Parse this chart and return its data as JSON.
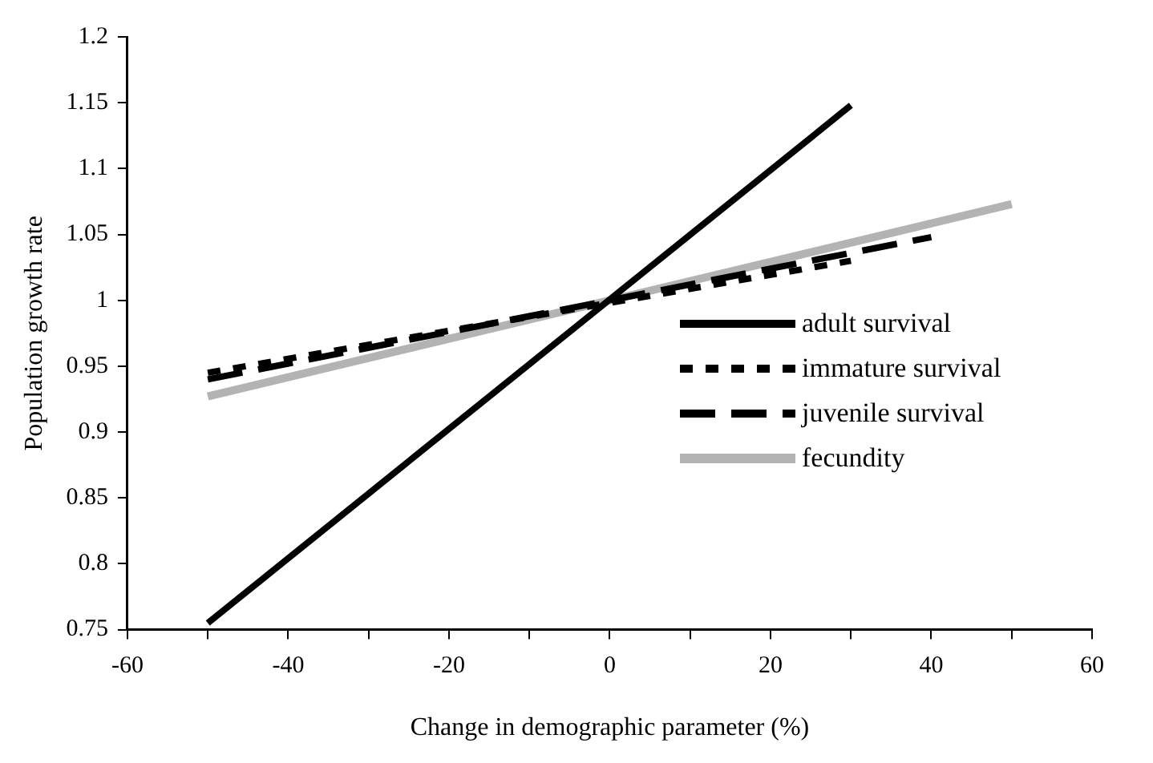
{
  "chart_data": {
    "type": "line",
    "xlabel": "Change in demographic parameter (%)",
    "ylabel": "Population growth rate",
    "xlim": [
      -60,
      60
    ],
    "xticks": [
      -60,
      {
        "value": -50,
        "label": null
      },
      -40,
      {
        "value": -30,
        "label": null
      },
      -20,
      {
        "value": -10,
        "label": null
      },
      0,
      {
        "value": 10,
        "label": null
      },
      20,
      {
        "value": 30,
        "label": null
      },
      40,
      {
        "value": 50,
        "label": null
      },
      60
    ],
    "ylim": [
      0.75,
      1.2
    ],
    "yticks": [
      0.75,
      0.8,
      0.85,
      0.9,
      0.95,
      1,
      1.05,
      1.1,
      1.15,
      1.2
    ],
    "grid": false,
    "legend": "right",
    "marker": "none",
    "series": [
      {
        "name": "adult survival",
        "color": "#000000",
        "line_style": "solid",
        "x": [
          -50,
          30
        ],
        "values": [
          0.755,
          1.148
        ]
      },
      {
        "name": "immature survival",
        "color": "#000000",
        "line_style": "dotted",
        "x": [
          -50,
          30
        ],
        "values": [
          0.945,
          1.03
        ]
      },
      {
        "name": "juvenile survival",
        "color": "#000000",
        "line_style": "dashed",
        "x": [
          -50,
          40
        ],
        "values": [
          0.94,
          1.048
        ]
      },
      {
        "name": "fecundity",
        "color": "#b3b3b3",
        "line_style": "solid",
        "x": [
          -50,
          50
        ],
        "values": [
          0.927,
          1.073
        ]
      }
    ]
  }
}
